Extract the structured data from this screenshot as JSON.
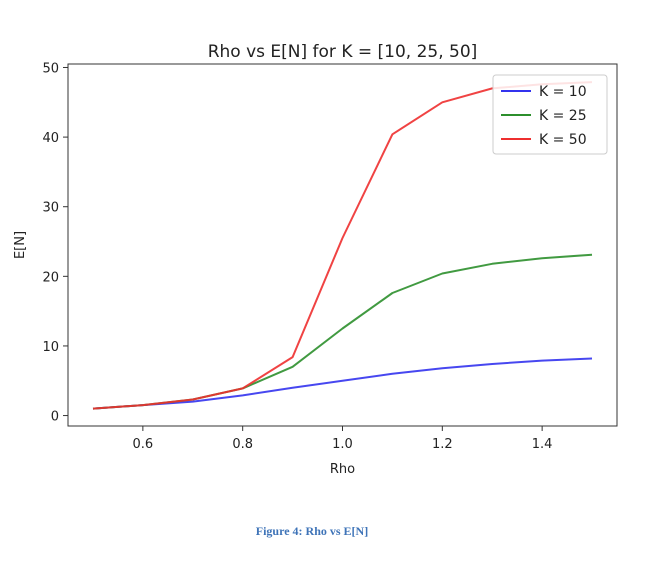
{
  "chart_data": {
    "type": "line",
    "title": "Rho vs E[N] for K = [10, 25, 50]",
    "xlabel": "Rho",
    "ylabel": "E[N]",
    "xlim": [
      0.45,
      1.55
    ],
    "ylim": [
      -1.5,
      50.5
    ],
    "xticks": [
      0.6,
      0.8,
      1.0,
      1.2,
      1.4
    ],
    "xtick_labels": [
      "0.6",
      "0.8",
      "1.0",
      "1.2",
      "1.4"
    ],
    "yticks": [
      0,
      10,
      20,
      30,
      40,
      50
    ],
    "ytick_labels": [
      "0",
      "10",
      "20",
      "30",
      "40",
      "50"
    ],
    "grid": false,
    "legend_position": "top-right",
    "x": [
      0.5,
      0.6,
      0.7,
      0.8,
      0.9,
      1.0,
      1.1,
      1.2,
      1.3,
      1.4,
      1.5
    ],
    "series": [
      {
        "name": "K = 10",
        "color": "#3333ee",
        "values": [
          1.0,
          1.5,
          2.0,
          2.9,
          4.0,
          5.0,
          6.0,
          6.8,
          7.4,
          7.9,
          8.2
        ]
      },
      {
        "name": "K = 25",
        "color": "#2c8f2c",
        "values": [
          1.0,
          1.5,
          2.3,
          3.9,
          7.0,
          12.5,
          17.6,
          20.4,
          21.8,
          22.6,
          23.1
        ]
      },
      {
        "name": "K = 50",
        "color": "#ee2f2f",
        "values": [
          1.0,
          1.5,
          2.3,
          3.9,
          8.4,
          25.5,
          40.4,
          45.0,
          47.0,
          47.6,
          47.9
        ]
      }
    ]
  },
  "caption": "Figure 4: Rho vs E[N]"
}
